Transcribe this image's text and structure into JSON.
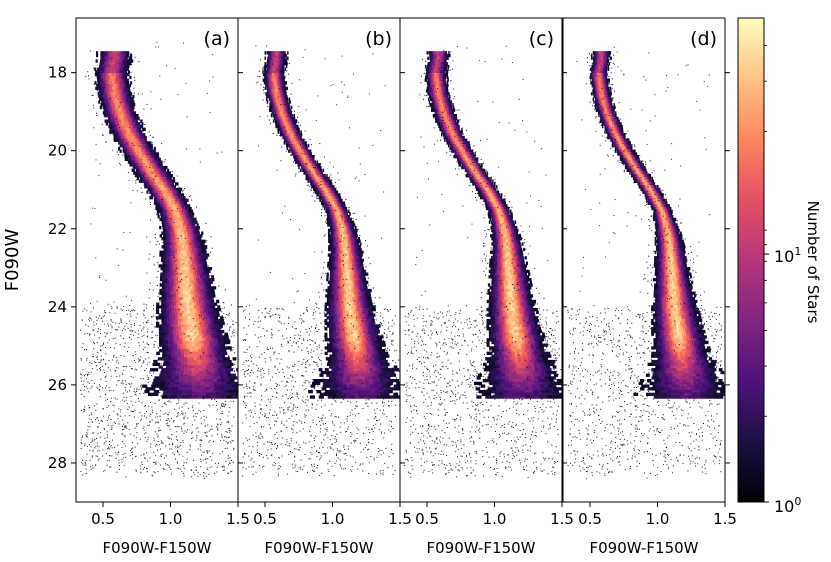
{
  "chart_data": {
    "type": "heatmap",
    "description_kind": "2D histogram (Hess diagram) color-magnitude diagram, four panels",
    "y_axis": {
      "label": "F090W",
      "range": [
        29.0,
        16.6
      ],
      "inverted": true,
      "ticks": [
        18,
        20,
        22,
        24,
        26,
        28
      ]
    },
    "x_axis": {
      "label": "F090W-F150W",
      "range": [
        0.3,
        1.5
      ],
      "ticks": [
        0.5,
        1.0,
        1.5
      ],
      "tick_labels": [
        "0.5",
        "1.0",
        "1.5"
      ]
    },
    "panels": [
      {
        "label": "(a)",
        "top_spread": 0.055,
        "faint_scatter": 1.0
      },
      {
        "label": "(b)",
        "top_spread": 0.035,
        "faint_scatter": 0.8
      },
      {
        "label": "(c)",
        "top_spread": 0.035,
        "faint_scatter": 0.85
      },
      {
        "label": "(d)",
        "top_spread": 0.03,
        "faint_scatter": 0.75
      }
    ],
    "ridge_line": {
      "mag": [
        17.6,
        18.0,
        18.5,
        19.0,
        19.5,
        20.0,
        20.5,
        21.0,
        21.5,
        22.0,
        22.5,
        23.0,
        23.5,
        24.0,
        24.5,
        25.0,
        25.5
      ],
      "color": [
        0.58,
        0.56,
        0.58,
        0.62,
        0.68,
        0.76,
        0.85,
        0.95,
        1.03,
        1.07,
        1.09,
        1.1,
        1.11,
        1.12,
        1.14,
        1.16,
        1.18
      ]
    },
    "colorbar": {
      "label": "Number of Stars",
      "scale": "log",
      "range": [
        1,
        50
      ],
      "tick_labels": [
        "10^0",
        "10^1"
      ],
      "tick_values": [
        1,
        10
      ],
      "colormap": "magma",
      "stops": [
        "#000004",
        "#1c1044",
        "#4f127b",
        "#812581",
        "#b5367a",
        "#e55064",
        "#fb8761",
        "#fec287",
        "#fcfdbf"
      ]
    }
  },
  "colorbar_ticks": {
    "low_base": "10",
    "low_exp": "0",
    "high_base": "10",
    "high_exp": "1"
  }
}
